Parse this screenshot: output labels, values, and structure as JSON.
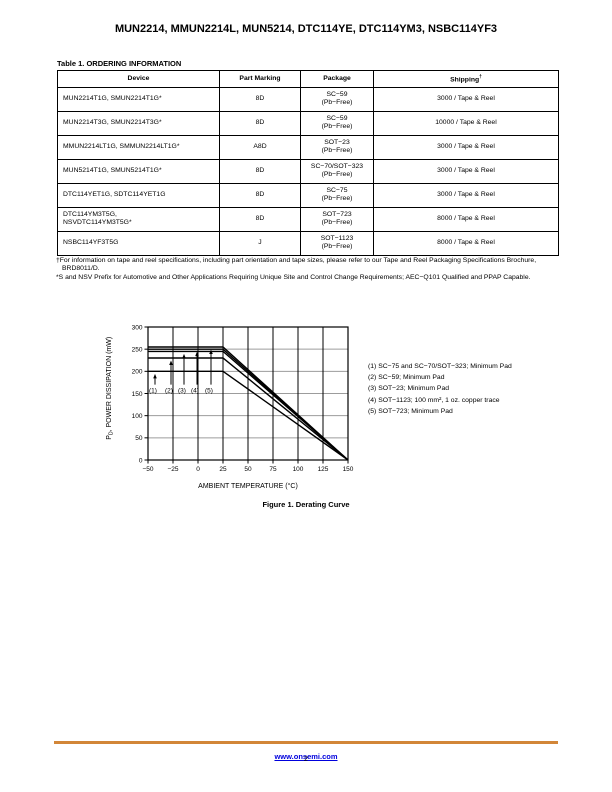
{
  "header": {
    "title": "MUN2214, MMUN2214L, MUN5214, DTC114YE, DTC114YM3, NSBC114YF3"
  },
  "table": {
    "title": "Table 1. ORDERING INFORMATION",
    "columns": {
      "device": "Device",
      "marking": "Part Marking",
      "package": "Package",
      "shipping": "Shipping"
    },
    "shipping_sup": "†",
    "rows": [
      {
        "device": "MUN2214T1G, SMUN2214T1G*",
        "device2": "",
        "marking": "8D",
        "package": "SC−59",
        "package2": "(Pb−Free)",
        "shipping": "3000 / Tape & Reel"
      },
      {
        "device": "MUN2214T3G, SMUN2214T3G*",
        "device2": "",
        "marking": "8D",
        "package": "SC−59",
        "package2": "(Pb−Free)",
        "shipping": "10000 / Tape & Reel"
      },
      {
        "device": "MMUN2214LT1G, SMMUN2214LT1G*",
        "device2": "",
        "marking": "A8D",
        "package": "SOT−23",
        "package2": "(Pb−Free)",
        "shipping": "3000 / Tape & Reel"
      },
      {
        "device": "MUN5214T1G, SMUN5214T1G*",
        "device2": "",
        "marking": "8D",
        "package": "SC−70/SOT−323",
        "package2": "(Pb−Free)",
        "shipping": "3000 / Tape & Reel"
      },
      {
        "device": "DTC114YET1G, SDTC114YET1G",
        "device2": "",
        "marking": "8D",
        "package": "SC−75",
        "package2": "(Pb−Free)",
        "shipping": "3000 / Tape & Reel"
      },
      {
        "device": "DTC114YM3T5G,",
        "device2": "NSVDTC114YM3T5G*",
        "marking": "8D",
        "package": "SOT−723",
        "package2": "(Pb−Free)",
        "shipping": "8000 / Tape & Reel"
      },
      {
        "device": "NSBC114YF3T5G",
        "device2": "",
        "marking": "J",
        "package": "SOT−1123",
        "package2": "(Pb−Free)",
        "shipping": "8000 / Tape & Reel"
      }
    ]
  },
  "footnotes": {
    "dagger": "†For information on tape and reel specifications, including part orientation and tape sizes, please refer to our Tape and Reel Packaging Specifications Brochure, BRD8011/D.",
    "asterisk": "*S and NSV Prefix for Automotive and Other Applications Requiring Unique Site and Control Change Requirements; AEC−Q101 Qualified and PPAP Capable."
  },
  "figure": {
    "caption": "Figure 1. Derating Curve",
    "xlabel": "AMBIENT TEMPERATURE (°C)",
    "ylabel_p": "P",
    "ylabel_sub": "D",
    "ylabel_rest": ", POWER DISSIPATION (mW)"
  },
  "chart_data": {
    "type": "line",
    "title": "Figure 1. Derating Curve",
    "xlabel": "AMBIENT TEMPERATURE (°C)",
    "ylabel": "PD, POWER DISSIPATION (mW)",
    "xlim": [
      -50,
      150
    ],
    "ylim": [
      0,
      300
    ],
    "x_ticks": [
      -50,
      -25,
      0,
      25,
      50,
      75,
      100,
      125,
      150
    ],
    "y_ticks": [
      0,
      50,
      100,
      150,
      200,
      250,
      300
    ],
    "x_tick_labels": [
      "−50",
      "−25",
      "0",
      "25",
      "50",
      "75",
      "100",
      "125",
      "150"
    ],
    "y_tick_labels": [
      "0",
      "50",
      "100",
      "150",
      "200",
      "250",
      "300"
    ],
    "grid": {
      "horizontal": "gray",
      "vertical": "black"
    },
    "line_color": "#000000",
    "series": [
      {
        "name": "(1) SC−75 and SC−70/SOT−323; Minimum Pad",
        "max_pd_mw": 200,
        "points": [
          [
            -50,
            200
          ],
          [
            25,
            200
          ],
          [
            150,
            0
          ]
        ]
      },
      {
        "name": "(2) SC−59; Minimum Pad",
        "max_pd_mw": 230,
        "points": [
          [
            -50,
            230
          ],
          [
            25,
            230
          ],
          [
            150,
            0
          ]
        ]
      },
      {
        "name": "(3) SOT−23; Minimum Pad",
        "max_pd_mw": 245,
        "points": [
          [
            -50,
            245
          ],
          [
            25,
            245
          ],
          [
            150,
            0
          ]
        ]
      },
      {
        "name": "(4) SOT−1123; 100 mm², 1 oz. copper trace",
        "max_pd_mw": 250,
        "points": [
          [
            -50,
            250
          ],
          [
            25,
            250
          ],
          [
            150,
            0
          ]
        ]
      },
      {
        "name": "(5) SOT−723; Minimum Pad",
        "max_pd_mw": 255,
        "points": [
          [
            -50,
            255
          ],
          [
            25,
            255
          ],
          [
            150,
            0
          ]
        ]
      }
    ],
    "annotations": [
      {
        "label": "(1)",
        "x": -45,
        "value": 200
      },
      {
        "label": "(2)",
        "x": -29,
        "value": 230
      },
      {
        "label": "(3)",
        "x": -16,
        "value": 245
      },
      {
        "label": "(4)",
        "x": -3,
        "value": 250
      },
      {
        "label": "(5)",
        "x": 11,
        "value": 255
      }
    ]
  },
  "footer": {
    "link_text": "www.onsemi.com",
    "page_number": "2",
    "rule_color": "#D28638",
    "link_color": "#0000DD"
  }
}
